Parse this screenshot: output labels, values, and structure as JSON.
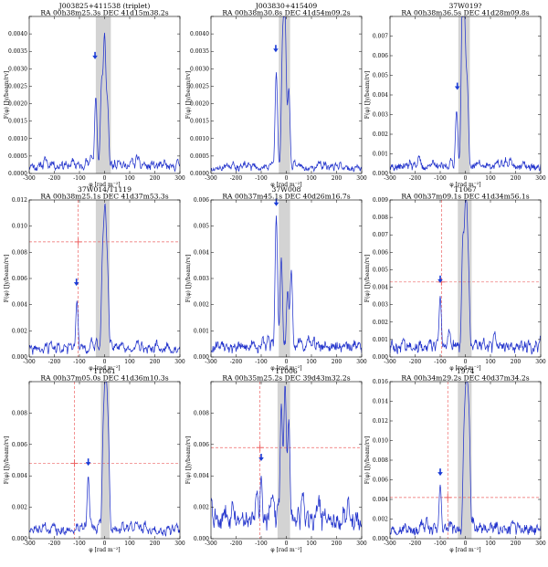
{
  "chart_data": [
    {
      "type": "line",
      "title": "J003825+411538 (triplet)",
      "subtitle": "RA  00h38m25.3s  DEC  41d15m38.2s",
      "xlabel": "φ [rad m⁻²]",
      "ylabel": "F(φ)  [Jy/beam/rv]",
      "xlim": [
        -300,
        300
      ],
      "ylim": [
        0,
        0.0045
      ],
      "yticks": [
        0.0,
        0.0005,
        0.001,
        0.0015,
        0.002,
        0.0025,
        0.003,
        0.0035,
        0.004,
        0.0045
      ],
      "ytick_decimals": 4,
      "ytick_labels": [
        "0.0000",
        "0.0005",
        "0.0010",
        "0.0015",
        "0.0020",
        "0.0025",
        "0.0030",
        "0.0035",
        "0.0040",
        ""
      ],
      "shaded_band": [
        -35,
        25
      ],
      "peaks": [
        {
          "x": -35,
          "y": 0.0022
        },
        {
          "x": -12,
          "y": 0.0025
        },
        {
          "x": 0,
          "y": 0.0038
        },
        {
          "x": 12,
          "y": 0.0019
        }
      ],
      "noise_level": 0.00035,
      "seed": 11,
      "marker_arrow": {
        "x": -38,
        "y": 0.0033
      },
      "threshold_cross": null
    },
    {
      "type": "line",
      "title": "J003830+415409",
      "subtitle": "RA  00h38m30.8s  DEC  41d54m09.2s",
      "xlabel": "φ [rad m⁻²]",
      "ylabel": "F(φ)  [Jy/beam/rv]",
      "xlim": [
        -300,
        300
      ],
      "ylim": [
        0,
        0.0045
      ],
      "yticks": [
        0.0,
        0.0005,
        0.001,
        0.0015,
        0.002,
        0.0025,
        0.003,
        0.0035,
        0.004,
        0.0045
      ],
      "ytick_decimals": 4,
      "ytick_labels": [
        "0.0000",
        "0.0005",
        "0.0010",
        "0.0015",
        "0.0020",
        "0.0025",
        "0.0030",
        "0.0035",
        "0.0040",
        ""
      ],
      "shaded_band": [
        -30,
        15
      ],
      "peaks": [
        {
          "x": -40,
          "y": 0.0029
        },
        {
          "x": -15,
          "y": 0.0035
        },
        {
          "x": -5,
          "y": 0.0042
        },
        {
          "x": 10,
          "y": 0.0024
        }
      ],
      "noise_level": 0.00025,
      "seed": 23,
      "marker_arrow": {
        "x": -42,
        "y": 0.0035
      },
      "threshold_cross": null
    },
    {
      "type": "line",
      "title": "37W019?",
      "subtitle": "RA  00h38m36.5s  DEC  41d28m09.8s",
      "xlabel": "φ [rad m⁻²]",
      "ylabel": "F(φ)  [Jy/beam/rv]",
      "xlim": [
        -300,
        300
      ],
      "ylim": [
        0,
        0.008
      ],
      "yticks": [
        0.0,
        0.001,
        0.002,
        0.003,
        0.004,
        0.005,
        0.006,
        0.007,
        0.008
      ],
      "ytick_decimals": 3,
      "ytick_labels": [
        "0.000",
        "0.001",
        "0.002",
        "0.003",
        "0.004",
        "0.005",
        "0.006",
        "0.007",
        ""
      ],
      "shaded_band": [
        -28,
        18
      ],
      "peaks": [
        {
          "x": -35,
          "y": 0.0032
        },
        {
          "x": -12,
          "y": 0.008
        },
        {
          "x": -3,
          "y": 0.0065
        },
        {
          "x": 8,
          "y": 0.0042
        }
      ],
      "noise_level": 0.0006,
      "seed": 37,
      "marker_arrow": {
        "x": -32,
        "y": 0.0043
      },
      "threshold_cross": null
    },
    {
      "type": "line",
      "title": "37W014/T1119",
      "subtitle": "RA  00h38m25.1s  DEC  41d37m53.3s",
      "xlabel": "φ [rad m⁻²]",
      "ylabel": "F(φ)  [Jy/beam/rv]",
      "xlim": [
        -300,
        300
      ],
      "ylim": [
        0,
        0.012
      ],
      "yticks": [
        0.0,
        0.002,
        0.004,
        0.006,
        0.008,
        0.01,
        0.012
      ],
      "ytick_decimals": 3,
      "ytick_labels": [
        "0.000",
        "0.002",
        "0.004",
        "0.006",
        "0.008",
        "0.010",
        "0.012"
      ],
      "shaded_band": [
        -35,
        20
      ],
      "peaks": [
        {
          "x": -110,
          "y": 0.0043
        },
        {
          "x": -8,
          "y": 0.0072
        },
        {
          "x": 2,
          "y": 0.01
        },
        {
          "x": 12,
          "y": 0.006
        }
      ],
      "noise_level": 0.0009,
      "seed": 41,
      "marker_arrow": {
        "x": -112,
        "y": 0.0055
      },
      "threshold_cross": {
        "x": -105,
        "y": 0.0088
      }
    },
    {
      "type": "line",
      "title": "37W008",
      "subtitle": "RA  00h37m45.1s  DEC  40d26m16.7s",
      "xlabel": "φ [rad m⁻²]",
      "ylabel": "F(φ)  [Jy/beam/rv]",
      "xlim": [
        -300,
        300
      ],
      "ylim": [
        0,
        0.006
      ],
      "yticks": [
        0.0,
        0.001,
        0.002,
        0.003,
        0.004,
        0.005,
        0.006
      ],
      "ytick_decimals": 3,
      "ytick_labels": [
        "0.000",
        "0.001",
        "0.002",
        "0.003",
        "0.004",
        "0.005",
        "0.006"
      ],
      "shaded_band": [
        -30,
        15
      ],
      "peaks": [
        {
          "x": -40,
          "y": 0.0054
        },
        {
          "x": -20,
          "y": 0.0038
        },
        {
          "x": 5,
          "y": 0.0025
        },
        {
          "x": 20,
          "y": 0.0033
        }
      ],
      "noise_level": 0.0006,
      "seed": 53,
      "marker_arrow": {
        "x": -40,
        "y": 0.0058
      },
      "threshold_cross": null
    },
    {
      "type": "line",
      "title": "T1067",
      "subtitle": "RA  00h37m09.1s  DEC  41d34m56.1s",
      "xlabel": "φ [rad m⁻²]",
      "ylabel": "F(φ)  [Jy/beam/rv]",
      "xlim": [
        -300,
        300
      ],
      "ylim": [
        0,
        0.009
      ],
      "yticks": [
        0.0,
        0.001,
        0.002,
        0.003,
        0.004,
        0.005,
        0.006,
        0.007,
        0.008,
        0.009
      ],
      "ytick_decimals": 3,
      "ytick_labels": [
        "0.000",
        "0.001",
        "0.002",
        "0.003",
        "0.004",
        "0.005",
        "0.006",
        "0.007",
        "0.008",
        "0.009"
      ],
      "shaded_band": [
        -30,
        25
      ],
      "peaks": [
        {
          "x": -100,
          "y": 0.0035
        },
        {
          "x": -10,
          "y": 0.0065
        },
        {
          "x": 2,
          "y": 0.009
        },
        {
          "x": 12,
          "y": 0.0048
        }
      ],
      "noise_level": 0.0009,
      "seed": 67,
      "marker_arrow": {
        "x": -100,
        "y": 0.0043
      },
      "threshold_cross": {
        "x": -95,
        "y": 0.0043
      }
    },
    {
      "type": "line",
      "title": "T1061",
      "subtitle": "RA  00h37m05.0s  DEC  41d36m10.3s",
      "xlabel": "φ [rad m⁻²]",
      "ylabel": "F(φ)  [Jy/beam/rv]",
      "xlim": [
        -300,
        300
      ],
      "ylim": [
        0,
        0.01
      ],
      "yticks": [
        0.0,
        0.002,
        0.004,
        0.006,
        0.008,
        0.01
      ],
      "ytick_decimals": 3,
      "ytick_labels": [
        "0.000",
        "0.002",
        "0.004",
        "0.006",
        "0.008",
        ""
      ],
      "shaded_band": [
        -15,
        20
      ],
      "peaks": [
        {
          "x": -65,
          "y": 0.004
        },
        {
          "x": -5,
          "y": 0.0065
        },
        {
          "x": 5,
          "y": 0.0097
        },
        {
          "x": 15,
          "y": 0.006
        }
      ],
      "noise_level": 0.0008,
      "seed": 71,
      "marker_arrow": {
        "x": -65,
        "y": 0.0047
      },
      "threshold_cross": {
        "x": -120,
        "y": 0.0048
      }
    },
    {
      "type": "line",
      "title": "T1006",
      "subtitle": "RA  00h35m25.2s  DEC  39d43m32.2s",
      "xlabel": "φ [rad m⁻²]",
      "ylabel": "F(φ)  [Jy/beam/rv]",
      "xlim": [
        -300,
        300
      ],
      "ylim": [
        0,
        0.01
      ],
      "yticks": [
        0.0,
        0.002,
        0.004,
        0.006,
        0.008,
        0.01
      ],
      "ytick_decimals": 3,
      "ytick_labels": [
        "0.000",
        "0.002",
        "0.004",
        "0.006",
        "0.008",
        ""
      ],
      "shaded_band": [
        -35,
        15
      ],
      "peaks": [
        {
          "x": -100,
          "y": 0.004
        },
        {
          "x": -20,
          "y": 0.0085
        },
        {
          "x": -5,
          "y": 0.0097
        },
        {
          "x": 10,
          "y": 0.0075
        }
      ],
      "noise_level": 0.0018,
      "seed": 83,
      "marker_arrow": {
        "x": -100,
        "y": 0.005
      },
      "threshold_cross": {
        "x": -105,
        "y": 0.0058
      }
    },
    {
      "type": "line",
      "title": "T974",
      "subtitle": "RA  00h34m29.2s  DEC  40d37m34.2s",
      "xlabel": "φ [rad m⁻²]",
      "ylabel": "F(φ)  [Jy/beam/rv]",
      "xlim": [
        -300,
        300
      ],
      "ylim": [
        0,
        0.016
      ],
      "yticks": [
        0.0,
        0.002,
        0.004,
        0.006,
        0.008,
        0.01,
        0.012,
        0.014,
        0.016
      ],
      "ytick_decimals": 3,
      "ytick_labels": [
        "0.000",
        "0.002",
        "0.004",
        "0.006",
        "0.008",
        "0.010",
        "0.012",
        "0.014",
        "0.016"
      ],
      "shaded_band": [
        -30,
        25
      ],
      "peaks": [
        {
          "x": -100,
          "y": 0.0055
        },
        {
          "x": -5,
          "y": 0.01
        },
        {
          "x": 5,
          "y": 0.015
        },
        {
          "x": 15,
          "y": 0.011
        }
      ],
      "noise_level": 0.0016,
      "seed": 97,
      "marker_arrow": {
        "x": -100,
        "y": 0.0065
      },
      "threshold_cross": {
        "x": -70,
        "y": 0.0042
      }
    }
  ],
  "colors": {
    "curve": "#2233cc",
    "band": "#d3d3d3",
    "threshold": "#ee6666",
    "arrow": "#1a3bd6"
  },
  "xticks": [
    -300,
    -200,
    -100,
    0,
    100,
    200,
    300
  ]
}
